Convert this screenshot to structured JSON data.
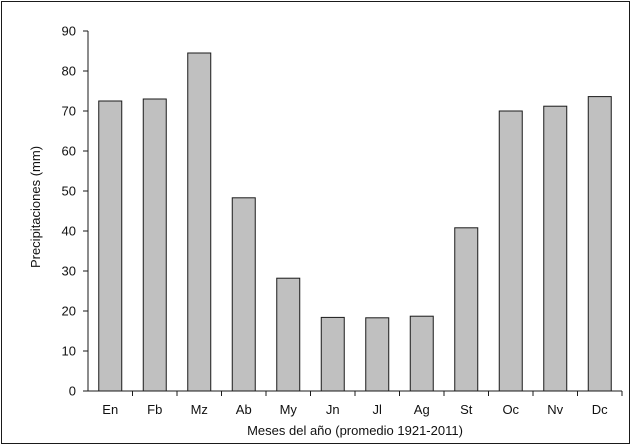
{
  "chart_data": {
    "type": "bar",
    "title": "",
    "xlabel": "Meses del año (promedio 1921-2011)",
    "ylabel": "Precipitaciones (mm)",
    "categories": [
      "En",
      "Fb",
      "Mz",
      "Ab",
      "My",
      "Jn",
      "Jl",
      "Ag",
      "St",
      "Oc",
      "Nv",
      "Dc"
    ],
    "values": [
      72.5,
      73,
      84.5,
      48.3,
      28.2,
      18.4,
      18.3,
      18.7,
      40.8,
      70,
      71.2,
      73.6
    ],
    "ylim": [
      0,
      90
    ],
    "yticks": [
      0,
      10,
      20,
      30,
      40,
      50,
      60,
      70,
      80,
      90
    ],
    "grid": false,
    "legend": "none",
    "bar_color": "#c0c0c0",
    "bar_edge_color": "#1a1a1a"
  }
}
